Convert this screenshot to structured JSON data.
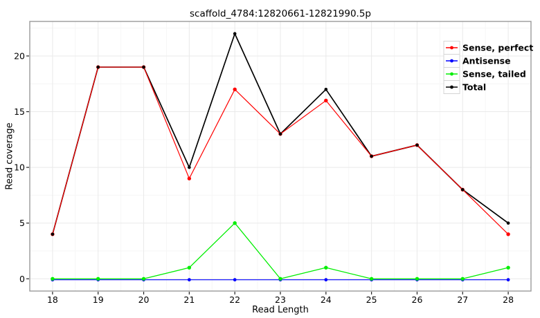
{
  "chart_data": {
    "type": "line",
    "title": "scaffold_4784:12820661-12821990.5p",
    "xlabel": "Read Length",
    "ylabel": "Read coverage",
    "x": [
      18,
      19,
      20,
      21,
      22,
      23,
      24,
      25,
      26,
      27,
      28
    ],
    "series": [
      {
        "name": "Sense, perfect",
        "color": "#ff0000",
        "values": [
          4,
          19,
          19,
          9,
          17,
          13,
          16,
          11,
          12,
          8,
          4
        ]
      },
      {
        "name": "Antisense",
        "color": "#0000ff",
        "values": [
          0,
          0,
          0,
          0,
          0,
          0,
          0,
          0,
          0,
          0,
          0
        ]
      },
      {
        "name": "Sense, tailed",
        "color": "#00ee00",
        "values": [
          0,
          0,
          0,
          1,
          5,
          0,
          1,
          0,
          0,
          0,
          1
        ]
      },
      {
        "name": "Total",
        "color": "#000000",
        "values": [
          4,
          19,
          19,
          10,
          22,
          13,
          17,
          11,
          12,
          8,
          5
        ]
      }
    ],
    "xticks": [
      18,
      19,
      20,
      21,
      22,
      23,
      24,
      25,
      26,
      27,
      28
    ],
    "yticks": [
      0,
      5,
      10,
      15,
      20
    ],
    "xlim": [
      17.5,
      28.5
    ],
    "ylim": [
      0,
      22
    ],
    "grid": true,
    "legend_position": "top-right",
    "marker": "circle",
    "colors": {
      "background": "#ffffff",
      "panel_border": "#999999",
      "grid_major": "#e9e9e9",
      "grid_minor": "#f6f6f6",
      "tick": "#222222",
      "text": "#000000",
      "legend_key_border": "#d4d4d4",
      "legend_key_fill": "#ffffff"
    }
  }
}
